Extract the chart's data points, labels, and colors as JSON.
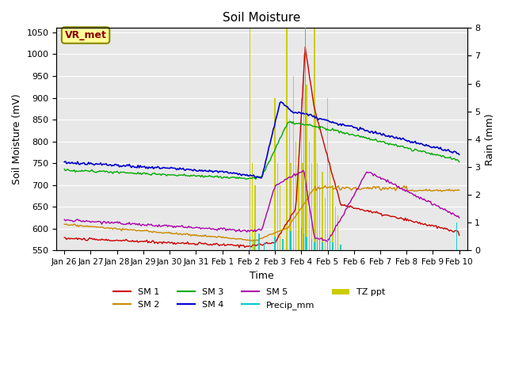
{
  "title": "Soil Moisture",
  "xlabel": "Time",
  "ylabel_left": "Soil Moisture (mV)",
  "ylabel_right": "Rain (mm)",
  "ylim_left": [
    550,
    1060
  ],
  "ylim_right": [
    0.0,
    8.0
  ],
  "yticks_left": [
    550,
    600,
    650,
    700,
    750,
    800,
    850,
    900,
    950,
    1000,
    1050
  ],
  "yticks_right": [
    0.0,
    1.0,
    2.0,
    3.0,
    4.0,
    5.0,
    6.0,
    7.0,
    8.0
  ],
  "xtick_labels": [
    "Jan 26",
    "Jan 27",
    "Jan 28",
    "Jan 29",
    "Jan 30",
    "Jan 31",
    "Feb 1",
    "Feb 2",
    "Feb 3",
    "Feb 4",
    "Feb 5",
    "Feb 6",
    "Feb 7",
    "Feb 8",
    "Feb 9",
    "Feb 10"
  ],
  "colors": {
    "SM1": "#cc0000",
    "SM2": "#cc8800",
    "SM3": "#00aa00",
    "SM4": "#0000cc",
    "SM5": "#aa00aa",
    "Precip": "#00cccc",
    "TZ": "#cccc00"
  },
  "bg_color": "#e8e8e8",
  "annotation_text": "VR_met",
  "annotation_bg": "#ffff99",
  "annotation_border": "#888800"
}
